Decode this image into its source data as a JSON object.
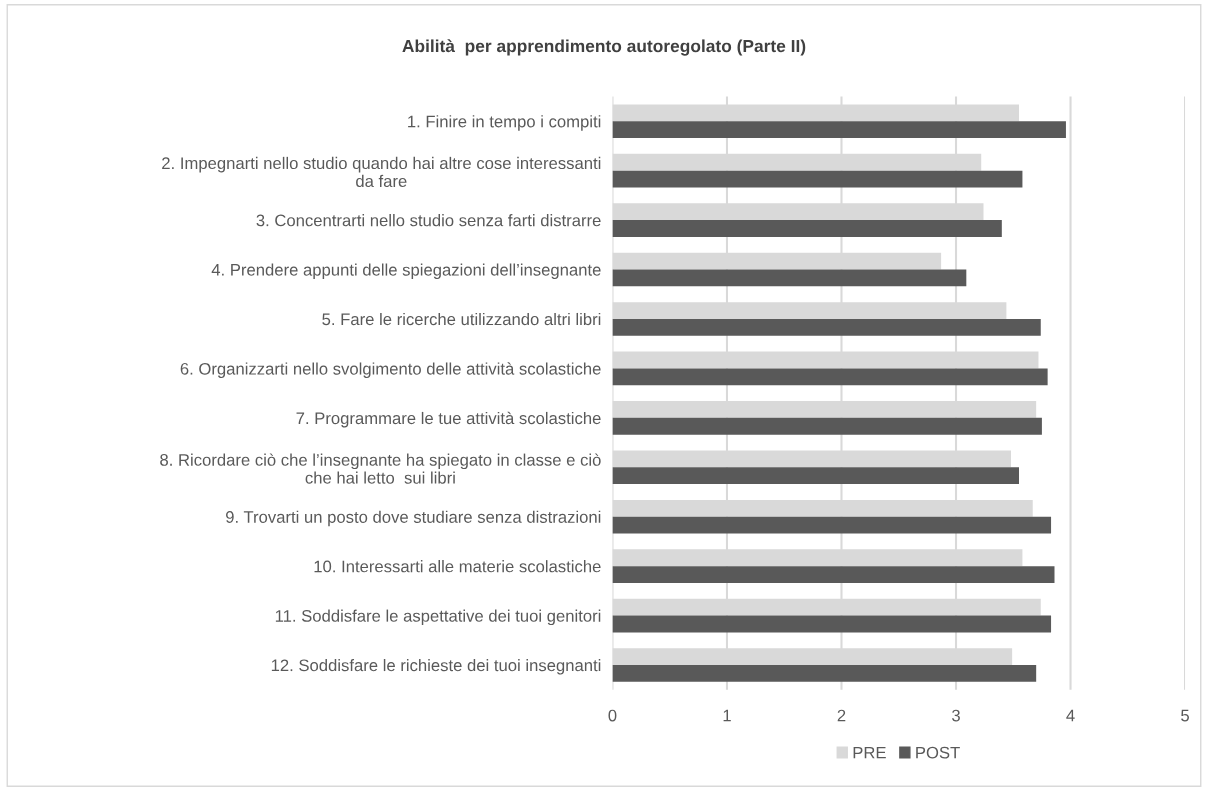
{
  "chart_data": {
    "type": "bar",
    "orientation": "horizontal",
    "title": "Abilità  per apprendimento autoregolato (Parte II)",
    "categories": [
      "1. Finire in tempo i compiti",
      "2. Impegnarti nello studio quando hai altre cose interessanti\nda fare",
      "3. Concentrarti nello studio senza farti distrarre",
      "4. Prendere appunti delle spiegazioni dell’insegnante",
      "5. Fare le ricerche utilizzando altri libri",
      "6. Organizzarti nello svolgimento delle attività scolastiche",
      "7. Programmare le tue attività scolastiche",
      "8. Ricordare ciò che l’insegnante ha spiegato in classe e ciò\nche hai letto  sui libri",
      "9. Trovarti un posto dove studiare senza distrazioni",
      "10. Interessarti alle materie scolastiche",
      "11. Soddisfare le aspettative dei tuoi genitori",
      "12. Soddisfare le richieste dei tuoi insegnanti"
    ],
    "series": [
      {
        "name": "PRE",
        "color": "#d9d9d9",
        "values": [
          3.55,
          3.22,
          3.24,
          2.87,
          3.44,
          3.72,
          3.7,
          3.48,
          3.67,
          3.58,
          3.74,
          3.49
        ]
      },
      {
        "name": "POST",
        "color": "#595959",
        "values": [
          3.96,
          3.58,
          3.4,
          3.09,
          3.74,
          3.8,
          3.75,
          3.55,
          3.83,
          3.86,
          3.83,
          3.7
        ]
      }
    ],
    "xlim": [
      0,
      5
    ],
    "xticks": [
      0,
      1,
      2,
      3,
      4,
      5
    ],
    "grid": "x",
    "legend": "bottom"
  }
}
